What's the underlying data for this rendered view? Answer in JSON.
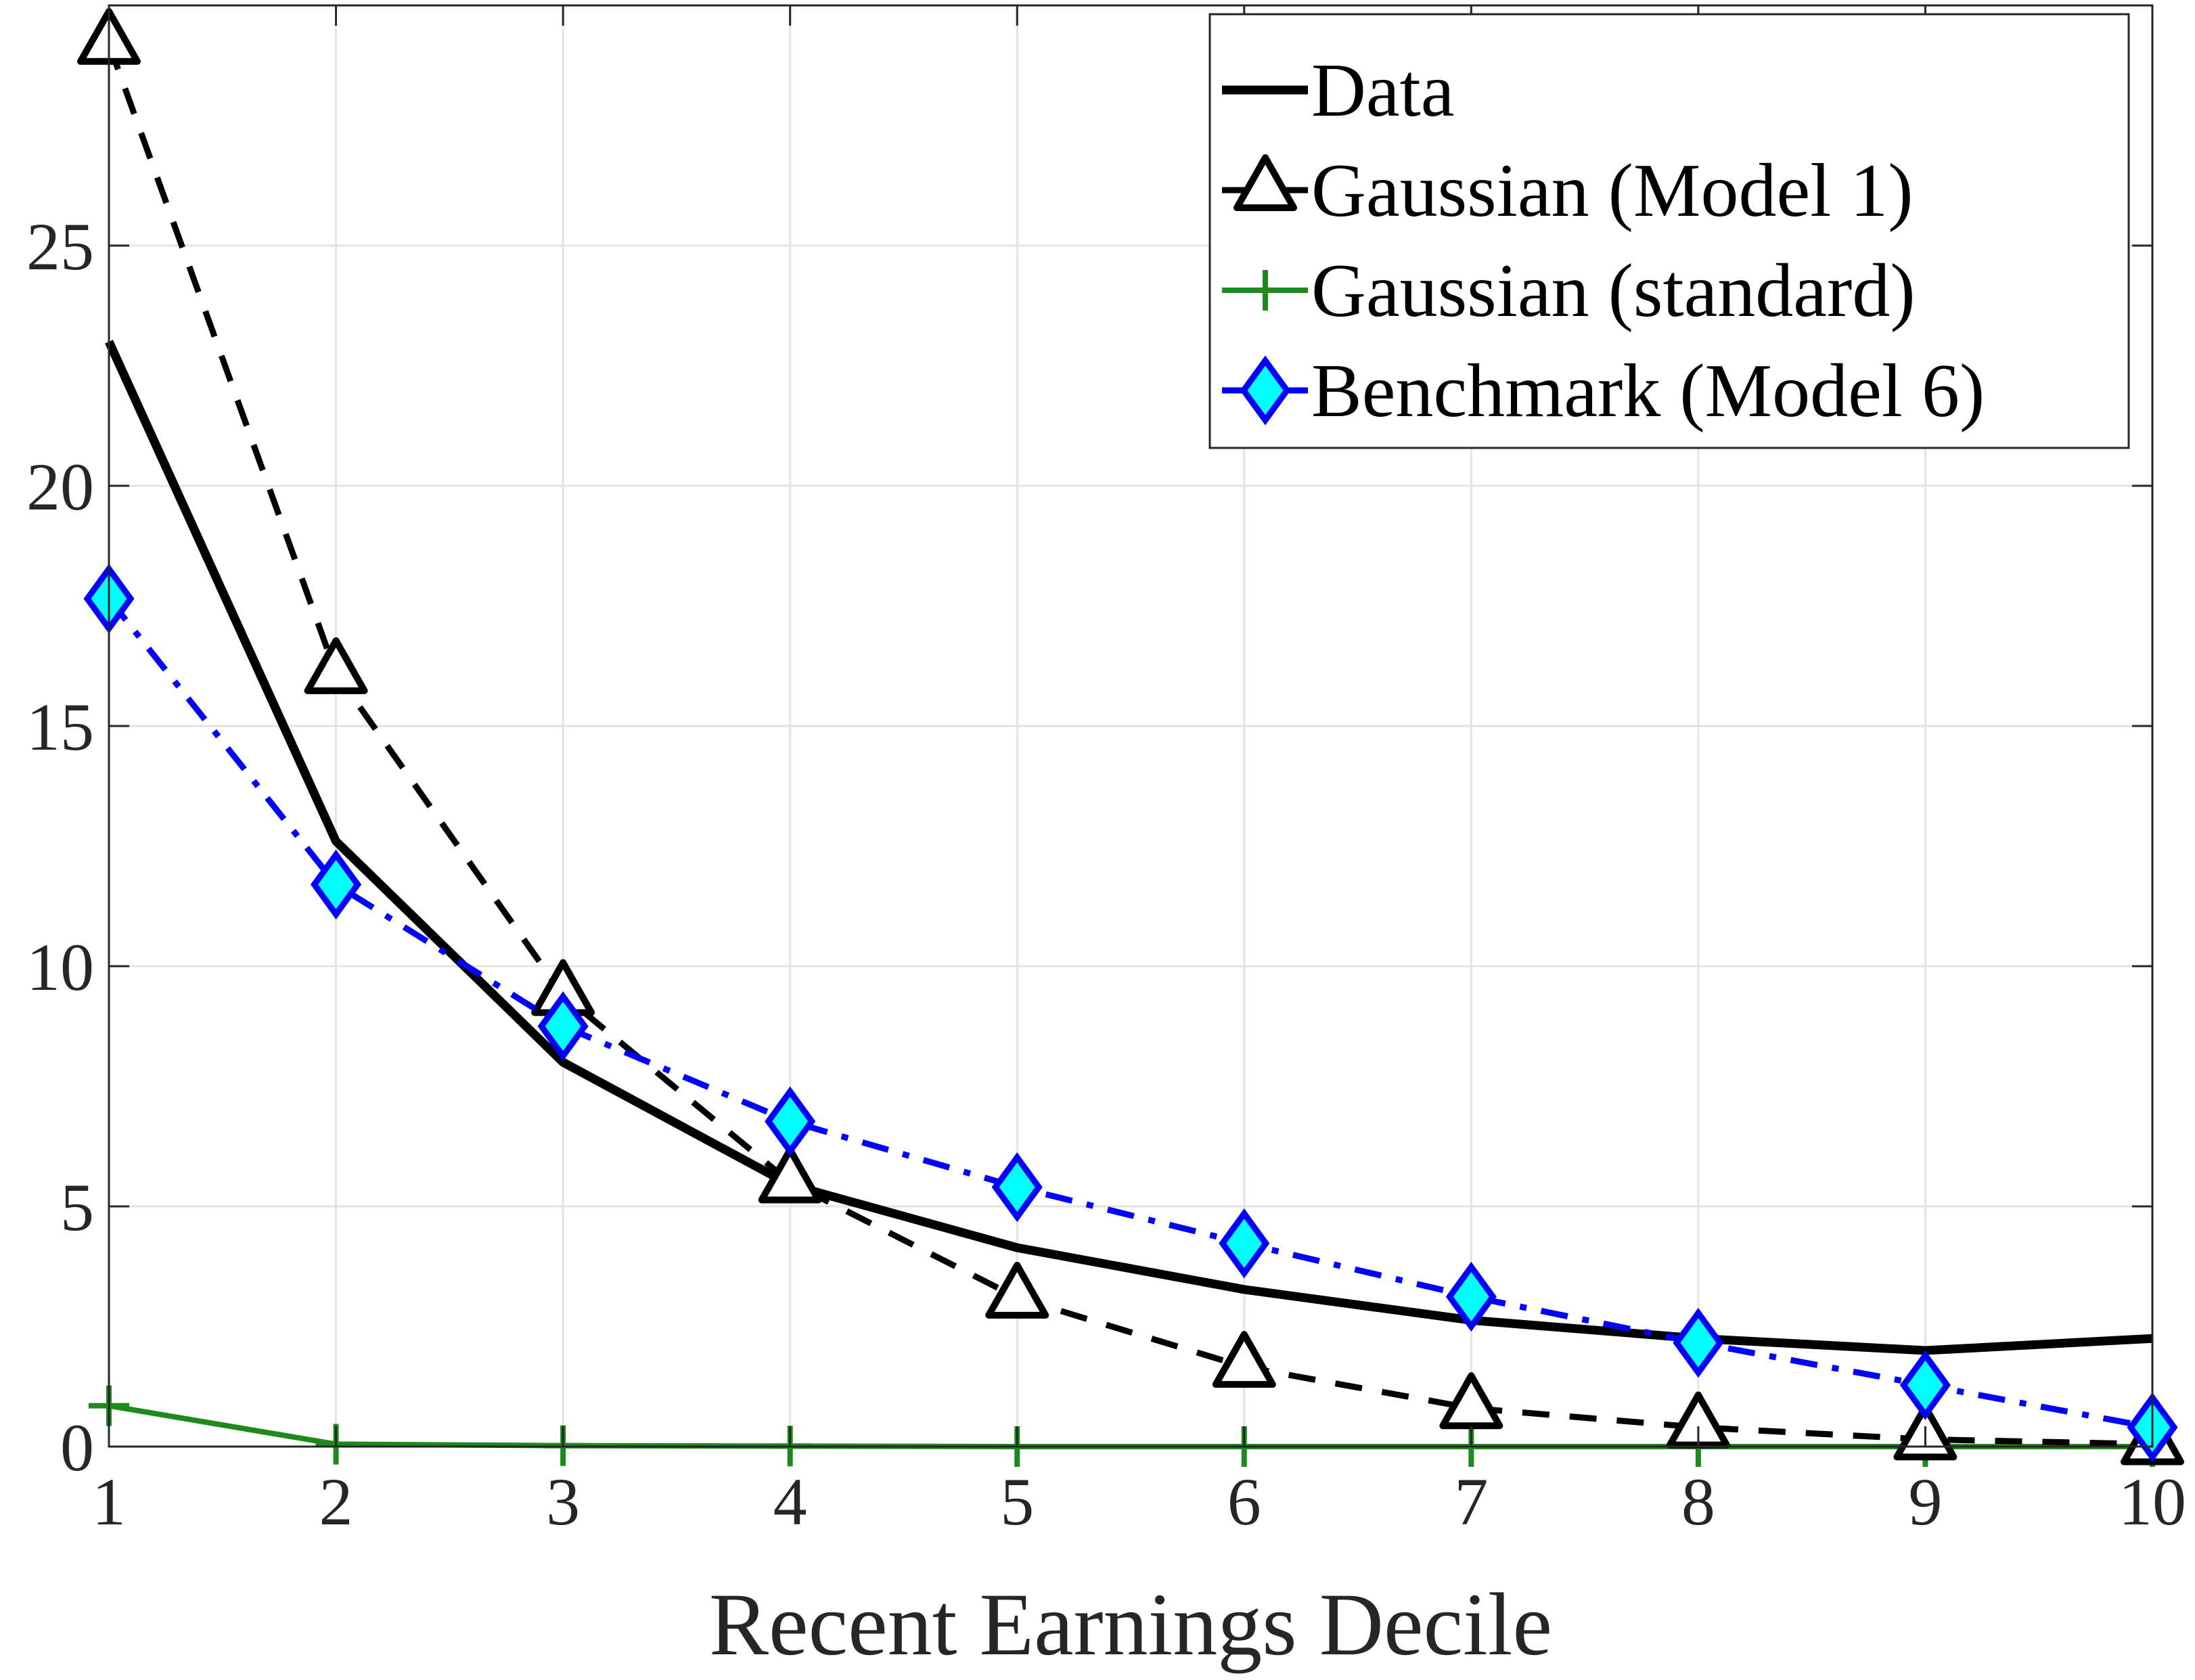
{
  "chart_data": {
    "type": "line",
    "title": "",
    "xlabel": "Recent Earnings Decile",
    "ylabel": "",
    "x": [
      1,
      2,
      3,
      4,
      5,
      6,
      7,
      8,
      9,
      10
    ],
    "xlim": [
      1,
      10
    ],
    "ylim": [
      0,
      30
    ],
    "xticks": [
      "1",
      "2",
      "3",
      "4",
      "5",
      "6",
      "7",
      "8",
      "9",
      "10"
    ],
    "yticks": [
      0,
      5,
      10,
      15,
      20,
      25
    ],
    "ytick_labels": [
      "0",
      "5",
      "10",
      "15",
      "20",
      "25"
    ],
    "grid": true,
    "legend_placement": "top-right",
    "series": [
      {
        "name": "Data",
        "color": "#000000",
        "line": "solid",
        "marker": "none",
        "values": [
          23.0,
          12.6,
          8.0,
          5.45,
          4.14,
          3.27,
          2.63,
          2.25,
          2.0,
          2.25
        ]
      },
      {
        "name": "Gaussian (Model 1)",
        "color": "#000000",
        "line": "dashed",
        "marker": "triangle",
        "values": [
          29.2,
          16.1,
          9.4,
          5.5,
          3.1,
          1.66,
          0.8,
          0.4,
          0.15,
          0.05
        ]
      },
      {
        "name": "Gaussian (standard)",
        "color": "#1e8a1e",
        "line": "solid",
        "marker": "plus",
        "values": [
          0.85,
          0.05,
          0.02,
          0.01,
          0.0,
          0.0,
          0.0,
          0.0,
          0.0,
          0.0
        ]
      },
      {
        "name": "Benchmark (Model 6)",
        "color": "#0000ff",
        "marker_fill": "#00ffff",
        "line": "dashdot",
        "marker": "diamond",
        "values": [
          17.65,
          11.7,
          8.75,
          6.77,
          5.4,
          4.23,
          3.12,
          2.16,
          1.28,
          0.4
        ]
      }
    ]
  }
}
